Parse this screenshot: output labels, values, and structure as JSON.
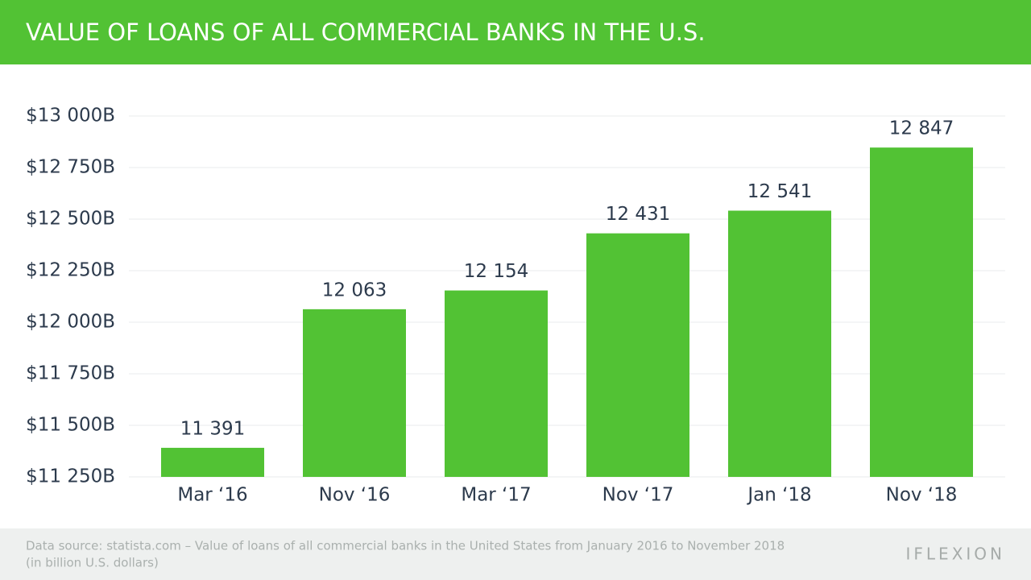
{
  "chart_data": {
    "type": "bar",
    "title": "VALUE OF LOANS OF ALL COMMERCIAL BANKS IN THE U.S.",
    "categories": [
      "Mar ‘16",
      "Nov ‘16",
      "Mar ‘17",
      "Nov ‘17",
      "Jan ‘18",
      "Nov ‘18"
    ],
    "values": [
      11391,
      12063,
      12154,
      12431,
      12541,
      12847
    ],
    "value_labels": [
      "11 391",
      "12 063",
      "12 154",
      "12 431",
      "12 541",
      "12 847"
    ],
    "color": "#52c234",
    "ylim": [
      11250,
      13000
    ],
    "yticks": [
      {
        "value": 11250,
        "label": "$11 250B"
      },
      {
        "value": 11500,
        "label": "$11 500B"
      },
      {
        "value": 11750,
        "label": "$11 750B"
      },
      {
        "value": 12000,
        "label": "$12 000B"
      },
      {
        "value": 12250,
        "label": "$12 250B"
      },
      {
        "value": 12500,
        "label": "$12 500B"
      },
      {
        "value": 12750,
        "label": "$12 750B"
      },
      {
        "value": 13000,
        "label": "$13 000B"
      }
    ],
    "grid": true,
    "source": "Data source: statista.com – Value of loans of all commercial banks in the United States from January 2016 to November 2018",
    "note": "(in billion U.S. dollars)",
    "logo": "IFLEXION"
  }
}
